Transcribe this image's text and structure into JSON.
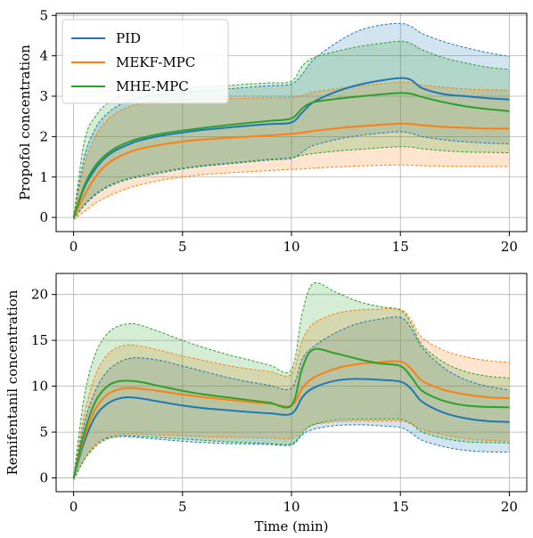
{
  "chart_data": [
    {
      "type": "line",
      "panel": "top",
      "xlabel": "",
      "ylabel": "Propofol concentration",
      "xlim": [
        -0.8,
        20.8
      ],
      "ylim": [
        -0.35,
        5.05
      ],
      "xticks": [
        0,
        5,
        10,
        15,
        20
      ],
      "yticks": [
        0,
        1,
        2,
        3,
        4,
        5
      ],
      "grid": true,
      "legend": {
        "placement": "top-left"
      },
      "x": [
        0,
        0.5,
        1,
        1.5,
        2,
        2.5,
        3,
        4,
        5,
        6,
        7,
        8,
        9,
        10,
        10.5,
        11,
        12,
        13,
        14,
        15,
        15.5,
        16,
        17,
        18,
        19,
        20
      ],
      "series": [
        {
          "name": "PID",
          "color": "#1f77b4",
          "values": [
            0,
            0.75,
            1.2,
            1.5,
            1.68,
            1.8,
            1.9,
            2.02,
            2.1,
            2.17,
            2.22,
            2.27,
            2.31,
            2.35,
            2.6,
            2.85,
            3.1,
            3.27,
            3.38,
            3.45,
            3.4,
            3.2,
            3.05,
            3.0,
            2.95,
            2.92
          ],
          "upper": [
            0,
            1.5,
            2.2,
            2.55,
            2.75,
            2.88,
            2.97,
            3.05,
            3.1,
            3.14,
            3.18,
            3.22,
            3.26,
            3.3,
            3.55,
            3.9,
            4.3,
            4.6,
            4.75,
            4.8,
            4.72,
            4.55,
            4.35,
            4.2,
            4.08,
            3.98
          ],
          "lower": [
            -0.05,
            0.3,
            0.55,
            0.73,
            0.85,
            0.94,
            1.0,
            1.1,
            1.2,
            1.27,
            1.32,
            1.37,
            1.42,
            1.46,
            1.62,
            1.78,
            1.92,
            2.02,
            2.08,
            2.12,
            2.08,
            2.0,
            1.92,
            1.87,
            1.84,
            1.82
          ]
        },
        {
          "name": "MEKF-MPC",
          "color": "#ff7f0e",
          "values": [
            0,
            0.55,
            1.0,
            1.3,
            1.48,
            1.6,
            1.69,
            1.8,
            1.88,
            1.93,
            1.97,
            2.0,
            2.03,
            2.07,
            2.1,
            2.14,
            2.2,
            2.25,
            2.29,
            2.32,
            2.31,
            2.28,
            2.24,
            2.22,
            2.2,
            2.2
          ],
          "upper": [
            0,
            1.3,
            2.0,
            2.38,
            2.6,
            2.73,
            2.81,
            2.88,
            2.91,
            2.93,
            2.94,
            2.95,
            2.96,
            2.97,
            3.02,
            3.1,
            3.18,
            3.25,
            3.3,
            3.35,
            3.33,
            3.28,
            3.22,
            3.18,
            3.16,
            3.15
          ],
          "lower": [
            -0.05,
            0.15,
            0.35,
            0.5,
            0.62,
            0.72,
            0.8,
            0.92,
            1.0,
            1.06,
            1.1,
            1.13,
            1.16,
            1.19,
            1.2,
            1.22,
            1.25,
            1.27,
            1.29,
            1.3,
            1.29,
            1.28,
            1.27,
            1.26,
            1.26,
            1.26
          ]
        },
        {
          "name": "MHE-MPC",
          "color": "#2ca02c",
          "values": [
            0,
            0.8,
            1.28,
            1.56,
            1.74,
            1.86,
            1.95,
            2.07,
            2.15,
            2.22,
            2.28,
            2.34,
            2.39,
            2.45,
            2.7,
            2.85,
            2.93,
            2.99,
            3.04,
            3.08,
            3.06,
            2.98,
            2.85,
            2.75,
            2.68,
            2.63
          ],
          "upper": [
            0,
            1.9,
            2.5,
            2.8,
            2.96,
            3.05,
            3.1,
            3.16,
            3.2,
            3.23,
            3.26,
            3.3,
            3.33,
            3.37,
            3.75,
            3.95,
            4.1,
            4.22,
            4.3,
            4.36,
            4.3,
            4.15,
            3.95,
            3.82,
            3.72,
            3.66
          ],
          "lower": [
            -0.05,
            0.32,
            0.58,
            0.76,
            0.88,
            0.97,
            1.03,
            1.13,
            1.22,
            1.29,
            1.34,
            1.39,
            1.44,
            1.48,
            1.54,
            1.58,
            1.64,
            1.68,
            1.72,
            1.75,
            1.74,
            1.7,
            1.65,
            1.62,
            1.61,
            1.6
          ]
        }
      ]
    },
    {
      "type": "line",
      "panel": "bottom",
      "xlabel": "Time (min)",
      "ylabel": "Remifentanil concentration",
      "xlim": [
        -0.8,
        20.8
      ],
      "ylim": [
        -1.5,
        22.3
      ],
      "xticks": [
        0,
        5,
        10,
        15,
        20
      ],
      "yticks": [
        0,
        5,
        10,
        15,
        20
      ],
      "grid": true,
      "legend": {
        "placement": "none"
      },
      "x": [
        0,
        0.5,
        1,
        1.5,
        2,
        2.5,
        3,
        4,
        5,
        6,
        7,
        8,
        9,
        10,
        10.5,
        11,
        12,
        13,
        14,
        15,
        15.5,
        16,
        17,
        18,
        19,
        20
      ],
      "series": [
        {
          "name": "PID",
          "color": "#1f77b4",
          "values": [
            0,
            4.0,
            6.7,
            8.0,
            8.6,
            8.8,
            8.7,
            8.3,
            7.9,
            7.6,
            7.4,
            7.2,
            7.05,
            7.0,
            8.8,
            9.8,
            10.6,
            10.8,
            10.7,
            10.5,
            9.7,
            8.3,
            7.1,
            6.5,
            6.2,
            6.1
          ],
          "upper": [
            0,
            6.0,
            9.5,
            11.5,
            12.5,
            13.0,
            13.1,
            12.8,
            12.2,
            11.6,
            11.0,
            10.5,
            10.1,
            9.8,
            13.0,
            14.3,
            15.8,
            16.8,
            17.3,
            17.5,
            16.3,
            14.2,
            12.0,
            10.7,
            10.0,
            9.6
          ],
          "lower": [
            -0.2,
            2.0,
            3.6,
            4.3,
            4.5,
            4.5,
            4.4,
            4.2,
            4.0,
            3.85,
            3.75,
            3.7,
            3.65,
            3.6,
            4.7,
            5.3,
            5.7,
            5.8,
            5.7,
            5.5,
            4.9,
            4.1,
            3.4,
            3.0,
            2.85,
            2.8
          ]
        },
        {
          "name": "MEKF-MPC",
          "color": "#ff7f0e",
          "values": [
            0,
            4.5,
            7.5,
            9.0,
            9.6,
            9.8,
            9.75,
            9.45,
            9.1,
            8.8,
            8.55,
            8.3,
            8.1,
            7.9,
            9.8,
            10.9,
            11.9,
            12.4,
            12.6,
            12.7,
            11.9,
            10.6,
            9.6,
            9.1,
            8.8,
            8.7
          ],
          "upper": [
            0,
            7.0,
            11.2,
            13.3,
            14.2,
            14.5,
            14.4,
            13.9,
            13.3,
            12.8,
            12.3,
            11.9,
            11.6,
            11.3,
            15.0,
            16.8,
            17.9,
            18.3,
            18.4,
            18.4,
            17.2,
            15.3,
            13.9,
            13.2,
            12.8,
            12.6
          ],
          "lower": [
            -0.2,
            2.0,
            3.6,
            4.4,
            4.7,
            4.8,
            4.8,
            4.7,
            4.6,
            4.5,
            4.45,
            4.4,
            4.35,
            4.3,
            5.2,
            5.8,
            6.1,
            6.2,
            6.2,
            6.2,
            5.9,
            5.3,
            4.7,
            4.3,
            4.1,
            4.0
          ]
        },
        {
          "name": "MHE-MPC",
          "color": "#2ca02c",
          "values": [
            0,
            5.0,
            8.3,
            9.9,
            10.5,
            10.6,
            10.5,
            10.0,
            9.5,
            9.1,
            8.8,
            8.5,
            8.2,
            7.9,
            12.0,
            14.0,
            13.6,
            13.0,
            12.5,
            12.2,
            11.0,
            9.5,
            8.4,
            7.9,
            7.75,
            7.7
          ],
          "upper": [
            0,
            9.0,
            13.5,
            15.6,
            16.5,
            16.8,
            16.7,
            15.9,
            15.0,
            14.2,
            13.5,
            12.9,
            12.3,
            11.8,
            18.0,
            21.2,
            20.3,
            19.3,
            18.7,
            18.3,
            16.8,
            14.5,
            12.6,
            11.6,
            11.1,
            10.9
          ],
          "lower": [
            -0.2,
            2.0,
            3.4,
            4.2,
            4.5,
            4.6,
            4.55,
            4.4,
            4.25,
            4.1,
            3.95,
            3.85,
            3.75,
            3.7,
            4.9,
            5.8,
            6.3,
            6.4,
            6.4,
            6.4,
            5.9,
            5.0,
            4.3,
            3.95,
            3.85,
            3.8
          ]
        }
      ]
    }
  ]
}
